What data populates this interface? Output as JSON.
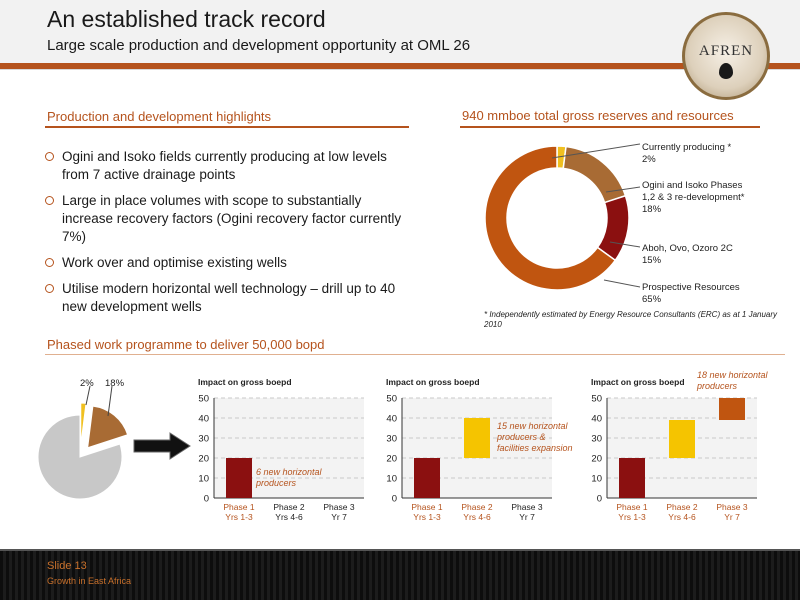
{
  "header": {
    "title": "An established track record",
    "subtitle": "Large scale production and development opportunity at OML 26",
    "logo_text": "AFREN"
  },
  "highlights": {
    "heading": "Production and development highlights",
    "bullets": [
      "Ogini and Isoko fields currently producing at low levels from 7 active drainage points",
      "Large in place volumes with scope to substantially increase recovery factors (Ogini recovery factor currently 7%)",
      "Work over and optimise existing wells",
      "Utilise modern horizontal well technology – drill up to 40 new development wells"
    ]
  },
  "reserves": {
    "heading": "940 mmboe total gross reserves and resources",
    "legend": [
      {
        "label": "Currently producing *",
        "value": "2%"
      },
      {
        "label": "Ogini and Isoko Phases 1,2 & 3 re-development*",
        "value": "18%"
      },
      {
        "label": "Aboh, Ovo, Ozoro 2C",
        "value": "15%"
      },
      {
        "label": "Prospective Resources",
        "value": "65%"
      }
    ],
    "footnote": "* Independently estimated by Energy Resource  Consultants (ERC) as at 1 January 2010"
  },
  "programme": {
    "heading": "Phased work programme to deliver 50,000 bopd",
    "pie_labels": [
      "2%",
      "18%"
    ]
  },
  "chart_data": [
    {
      "type": "pie",
      "title": "940 mmboe total gross reserves and resources",
      "categories": [
        "Currently producing *",
        "Ogini and Isoko Phases 1,2 & 3 re-development*",
        "Aboh, Ovo, Ozoro 2C",
        "Prospective Resources"
      ],
      "values": [
        2,
        18,
        15,
        65
      ],
      "colors": [
        "#f0c020",
        "#a86b34",
        "#8b1010",
        "#c05510"
      ],
      "donut": true
    },
    {
      "type": "pie",
      "categories": [
        "Currently producing",
        "Phases 1,2 & 3",
        "Other"
      ],
      "values": [
        2,
        18,
        80
      ],
      "colors": [
        "#f0c020",
        "#a86b34",
        "#c8c8c8"
      ],
      "labels": [
        "2%",
        "18%",
        ""
      ]
    },
    {
      "type": "bar",
      "ylabel": "Impact on gross boepd",
      "categories": [
        "Phase 1 Yrs 1-3",
        "Phase 2 Yrs 4-6",
        "Phase 3 Yr 7"
      ],
      "tick_labels": [
        [
          "Phase 1",
          "Yrs 1-3"
        ],
        [
          "Phase 2",
          "Yrs 4-6"
        ],
        [
          "Phase 3",
          "Yr 7"
        ]
      ],
      "label_colors": [
        "#b5531d",
        "#222222",
        "#222222"
      ],
      "ylim": [
        0,
        50
      ],
      "yticks": [
        0,
        10,
        20,
        30,
        40,
        50
      ],
      "bars": [
        {
          "base": 0,
          "top": 20,
          "color": "#8b1010"
        }
      ],
      "annotation": "6 new horizontal producers"
    },
    {
      "type": "bar",
      "ylabel": "Impact on gross boepd",
      "categories": [
        "Phase 1 Yrs 1-3",
        "Phase 2 Yrs 4-6",
        "Phase 3 Yr 7"
      ],
      "tick_labels": [
        [
          "Phase 1",
          "Yrs 1-3"
        ],
        [
          "Phase 2",
          "Yrs 4-6"
        ],
        [
          "Phase 3",
          "Yr 7"
        ]
      ],
      "label_colors": [
        "#b5531d",
        "#b5531d",
        "#222222"
      ],
      "ylim": [
        0,
        50
      ],
      "yticks": [
        0,
        10,
        20,
        30,
        40,
        50
      ],
      "bars": [
        {
          "base": 0,
          "top": 20,
          "color": "#8b1010"
        },
        {
          "base": 20,
          "top": 40,
          "color": "#f5c400"
        }
      ],
      "annotation": "15 new horizontal producers & facilities expansion"
    },
    {
      "type": "bar",
      "ylabel": "Impact on gross boepd",
      "categories": [
        "Phase 1 Yrs 1-3",
        "Phase 2 Yrs 4-6",
        "Phase 3 Yr 7"
      ],
      "tick_labels": [
        [
          "Phase 1",
          "Yrs 1-3"
        ],
        [
          "Phase 2",
          "Yrs 4-6"
        ],
        [
          "Phase 3",
          "Yr 7"
        ]
      ],
      "label_colors": [
        "#b5531d",
        "#b5531d",
        "#b5531d"
      ],
      "ylim": [
        0,
        50
      ],
      "yticks": [
        0,
        10,
        20,
        30,
        40,
        50
      ],
      "bars": [
        {
          "base": 0,
          "top": 20,
          "color": "#8b1010"
        },
        {
          "base": 20,
          "top": 39,
          "color": "#f5c400"
        },
        {
          "base": 39,
          "top": 50,
          "color": "#c05510"
        }
      ],
      "annotation": "18 new horizontal producers"
    }
  ],
  "footer": {
    "slide": "Slide 13",
    "tagline": "Growth in East Africa"
  }
}
